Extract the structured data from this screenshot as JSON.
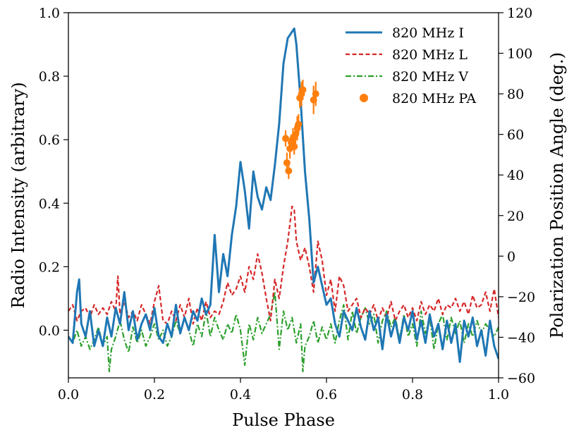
{
  "chart_data": {
    "type": "line",
    "xlabel": "Pulse Phase",
    "ylabel": "Radio Intensity (arbitrary)",
    "y2label": "Polarization Position Angle (deg.)",
    "xlim": [
      0.0,
      1.0
    ],
    "ylim": [
      -0.15,
      1.0
    ],
    "y2lim": [
      -60,
      120
    ],
    "xticks": [
      0.0,
      0.2,
      0.4,
      0.6,
      0.8,
      1.0
    ],
    "xtick_labels": [
      "0.0",
      "0.2",
      "0.4",
      "0.6",
      "0.8",
      "1.0"
    ],
    "yticks": [
      0.0,
      0.2,
      0.4,
      0.6,
      0.8,
      1.0
    ],
    "ytick_labels": [
      "0.0",
      "0.2",
      "0.4",
      "0.6",
      "0.8",
      "1.0"
    ],
    "y2ticks": [
      -60,
      -40,
      -20,
      0,
      20,
      40,
      60,
      80,
      100,
      120
    ],
    "y2tick_labels": [
      "−60",
      "−40",
      "−20",
      "0",
      "20",
      "40",
      "60",
      "80",
      "100",
      "120"
    ],
    "legend_position": "top-right",
    "series": [
      {
        "name": "820 MHz I",
        "color": "#1f77b4",
        "style": "solid",
        "axis": "left",
        "x": [
          0.0,
          0.01,
          0.02,
          0.025,
          0.03,
          0.04,
          0.05,
          0.06,
          0.07,
          0.08,
          0.09,
          0.1,
          0.11,
          0.12,
          0.13,
          0.14,
          0.15,
          0.16,
          0.17,
          0.18,
          0.19,
          0.2,
          0.21,
          0.22,
          0.23,
          0.24,
          0.25,
          0.26,
          0.27,
          0.28,
          0.29,
          0.3,
          0.31,
          0.32,
          0.33,
          0.34,
          0.35,
          0.36,
          0.37,
          0.38,
          0.39,
          0.4,
          0.41,
          0.42,
          0.43,
          0.44,
          0.45,
          0.46,
          0.47,
          0.48,
          0.49,
          0.5,
          0.51,
          0.52,
          0.525,
          0.53,
          0.54,
          0.55,
          0.56,
          0.57,
          0.58,
          0.59,
          0.6,
          0.61,
          0.62,
          0.63,
          0.64,
          0.65,
          0.66,
          0.67,
          0.68,
          0.69,
          0.7,
          0.71,
          0.72,
          0.73,
          0.74,
          0.75,
          0.76,
          0.77,
          0.78,
          0.79,
          0.8,
          0.81,
          0.82,
          0.83,
          0.84,
          0.85,
          0.86,
          0.87,
          0.88,
          0.89,
          0.9,
          0.91,
          0.92,
          0.93,
          0.94,
          0.95,
          0.96,
          0.97,
          0.98,
          0.99,
          1.0
        ],
        "values": [
          -0.02,
          -0.04,
          0.12,
          0.16,
          0.02,
          -0.02,
          0.06,
          -0.05,
          0.0,
          -0.05,
          0.04,
          -0.02,
          0.07,
          0.02,
          0.12,
          0.0,
          0.06,
          -0.03,
          0.02,
          0.05,
          0.0,
          0.07,
          -0.02,
          -0.04,
          0.02,
          -0.02,
          0.08,
          -0.01,
          0.04,
          0.0,
          0.06,
          0.03,
          0.1,
          0.05,
          0.08,
          0.3,
          0.12,
          0.24,
          0.17,
          0.3,
          0.39,
          0.53,
          0.44,
          0.32,
          0.5,
          0.42,
          0.38,
          0.45,
          0.41,
          0.52,
          0.65,
          0.84,
          0.92,
          0.94,
          0.95,
          0.9,
          0.72,
          0.5,
          0.35,
          0.15,
          0.2,
          0.14,
          0.08,
          0.1,
          0.02,
          -0.02,
          0.06,
          0.03,
          0.0,
          0.07,
          0.01,
          -0.03,
          0.06,
          0.0,
          0.04,
          -0.06,
          0.05,
          -0.02,
          0.03,
          -0.04,
          0.04,
          0.0,
          0.06,
          -0.03,
          0.03,
          -0.04,
          0.05,
          -0.02,
          0.02,
          -0.06,
          0.03,
          -0.04,
          0.02,
          -0.1,
          0.03,
          -0.02,
          0.04,
          -0.05,
          0.0,
          -0.08,
          0.03,
          -0.05,
          -0.09
        ]
      },
      {
        "name": "820 MHz L",
        "color": "#d62728",
        "style": "dashed",
        "axis": "left",
        "x": [
          0.0,
          0.01,
          0.02,
          0.03,
          0.04,
          0.05,
          0.06,
          0.07,
          0.08,
          0.09,
          0.1,
          0.11,
          0.115,
          0.12,
          0.13,
          0.14,
          0.15,
          0.16,
          0.17,
          0.18,
          0.19,
          0.2,
          0.21,
          0.22,
          0.23,
          0.24,
          0.25,
          0.26,
          0.27,
          0.28,
          0.29,
          0.3,
          0.31,
          0.32,
          0.33,
          0.34,
          0.35,
          0.36,
          0.37,
          0.38,
          0.39,
          0.4,
          0.41,
          0.42,
          0.43,
          0.44,
          0.45,
          0.46,
          0.47,
          0.48,
          0.49,
          0.5,
          0.51,
          0.52,
          0.525,
          0.53,
          0.54,
          0.55,
          0.56,
          0.57,
          0.58,
          0.59,
          0.6,
          0.61,
          0.62,
          0.63,
          0.64,
          0.65,
          0.66,
          0.67,
          0.68,
          0.69,
          0.7,
          0.71,
          0.72,
          0.73,
          0.74,
          0.75,
          0.76,
          0.77,
          0.78,
          0.79,
          0.8,
          0.81,
          0.82,
          0.83,
          0.84,
          0.85,
          0.86,
          0.87,
          0.88,
          0.89,
          0.9,
          0.91,
          0.92,
          0.93,
          0.94,
          0.95,
          0.96,
          0.97,
          0.98,
          0.99,
          1.0
        ],
        "values": [
          0.06,
          0.08,
          0.03,
          0.06,
          0.07,
          0.04,
          0.08,
          0.05,
          0.07,
          0.05,
          0.09,
          0.06,
          0.17,
          0.05,
          0.09,
          0.04,
          0.06,
          0.03,
          0.08,
          0.05,
          0.02,
          0.09,
          0.14,
          0.03,
          0.02,
          0.06,
          0.03,
          0.08,
          0.04,
          0.1,
          0.02,
          0.07,
          0.03,
          0.09,
          0.04,
          0.06,
          0.05,
          0.09,
          0.15,
          0.11,
          0.13,
          0.17,
          0.12,
          0.2,
          0.16,
          0.24,
          0.18,
          0.1,
          0.03,
          0.16,
          0.1,
          0.2,
          0.28,
          0.39,
          0.38,
          0.28,
          0.22,
          0.26,
          0.2,
          0.12,
          0.28,
          0.22,
          0.11,
          0.16,
          0.06,
          0.17,
          0.14,
          0.06,
          0.08,
          0.1,
          0.04,
          0.07,
          0.05,
          0.08,
          0.03,
          0.07,
          0.04,
          0.09,
          0.03,
          0.06,
          0.08,
          0.04,
          0.07,
          0.03,
          0.09,
          0.05,
          0.08,
          0.06,
          0.1,
          0.05,
          0.08,
          0.07,
          0.1,
          0.06,
          0.09,
          0.05,
          0.11,
          0.07,
          0.08,
          0.12,
          0.06,
          0.13,
          0.04
        ]
      },
      {
        "name": "820 MHz V",
        "color": "#2ca02c",
        "style": "dashdot",
        "axis": "left",
        "x": [
          0.0,
          0.01,
          0.02,
          0.03,
          0.04,
          0.05,
          0.06,
          0.07,
          0.08,
          0.09,
          0.095,
          0.1,
          0.11,
          0.12,
          0.13,
          0.14,
          0.15,
          0.16,
          0.17,
          0.18,
          0.19,
          0.2,
          0.21,
          0.22,
          0.23,
          0.24,
          0.25,
          0.26,
          0.27,
          0.28,
          0.29,
          0.3,
          0.31,
          0.32,
          0.33,
          0.34,
          0.35,
          0.36,
          0.37,
          0.38,
          0.39,
          0.4,
          0.41,
          0.42,
          0.43,
          0.44,
          0.45,
          0.46,
          0.47,
          0.48,
          0.49,
          0.5,
          0.51,
          0.52,
          0.53,
          0.54,
          0.545,
          0.55,
          0.56,
          0.57,
          0.58,
          0.59,
          0.6,
          0.61,
          0.62,
          0.63,
          0.64,
          0.65,
          0.66,
          0.67,
          0.68,
          0.69,
          0.7,
          0.71,
          0.72,
          0.73,
          0.74,
          0.75,
          0.76,
          0.77,
          0.78,
          0.79,
          0.8,
          0.81,
          0.82,
          0.83,
          0.84,
          0.85,
          0.86,
          0.87,
          0.88,
          0.89,
          0.9,
          0.91,
          0.92,
          0.93,
          0.94,
          0.95,
          0.96,
          0.97,
          0.98,
          0.99,
          1.0
        ],
        "values": [
          -0.02,
          -0.04,
          0.0,
          -0.05,
          -0.02,
          -0.06,
          -0.03,
          0.01,
          -0.05,
          -0.02,
          -0.13,
          -0.06,
          -0.02,
          0.03,
          -0.03,
          -0.07,
          0.01,
          -0.04,
          0.0,
          -0.05,
          -0.02,
          0.02,
          -0.03,
          0.0,
          -0.05,
          -0.02,
          0.03,
          -0.01,
          0.04,
          0.0,
          -0.05,
          0.02,
          -0.02,
          0.06,
          -0.02,
          0.04,
          0.0,
          -0.03,
          0.02,
          -0.01,
          0.05,
          0.0,
          -0.11,
          0.02,
          -0.03,
          0.04,
          -0.01,
          0.02,
          0.05,
          0.12,
          -0.06,
          0.06,
          0.0,
          0.04,
          -0.04,
          0.02,
          -0.13,
          -0.05,
          -0.02,
          0.03,
          -0.04,
          0.01,
          -0.03,
          0.02,
          -0.04,
          0.03,
          0.08,
          -0.03,
          0.06,
          -0.01,
          0.04,
          0.07,
          0.02,
          0.05,
          -0.04,
          0.03,
          0.06,
          0.01,
          0.04,
          -0.03,
          0.05,
          -0.02,
          0.02,
          -0.05,
          0.06,
          -0.01,
          0.04,
          -0.06,
          0.02,
          0.05,
          -0.03,
          0.04,
          -0.01,
          0.03,
          -0.04,
          0.02,
          -0.02,
          0.03,
          -0.01,
          0.02,
          0.0,
          -0.02,
          0.01
        ]
      },
      {
        "name": "820 MHz PA",
        "color": "#ff7f0e",
        "style": "points",
        "axis": "right",
        "x": [
          0.505,
          0.508,
          0.512,
          0.515,
          0.518,
          0.522,
          0.525,
          0.528,
          0.532,
          0.535,
          0.538,
          0.542,
          0.545,
          0.57,
          0.575
        ],
        "values": [
          58,
          46,
          42,
          53,
          56,
          58,
          54,
          60,
          63,
          65,
          78,
          80,
          82,
          77,
          80
        ],
        "errors": [
          4,
          5,
          4,
          5,
          4,
          5,
          4,
          5,
          6,
          5,
          5,
          6,
          5,
          7,
          6
        ]
      }
    ]
  }
}
